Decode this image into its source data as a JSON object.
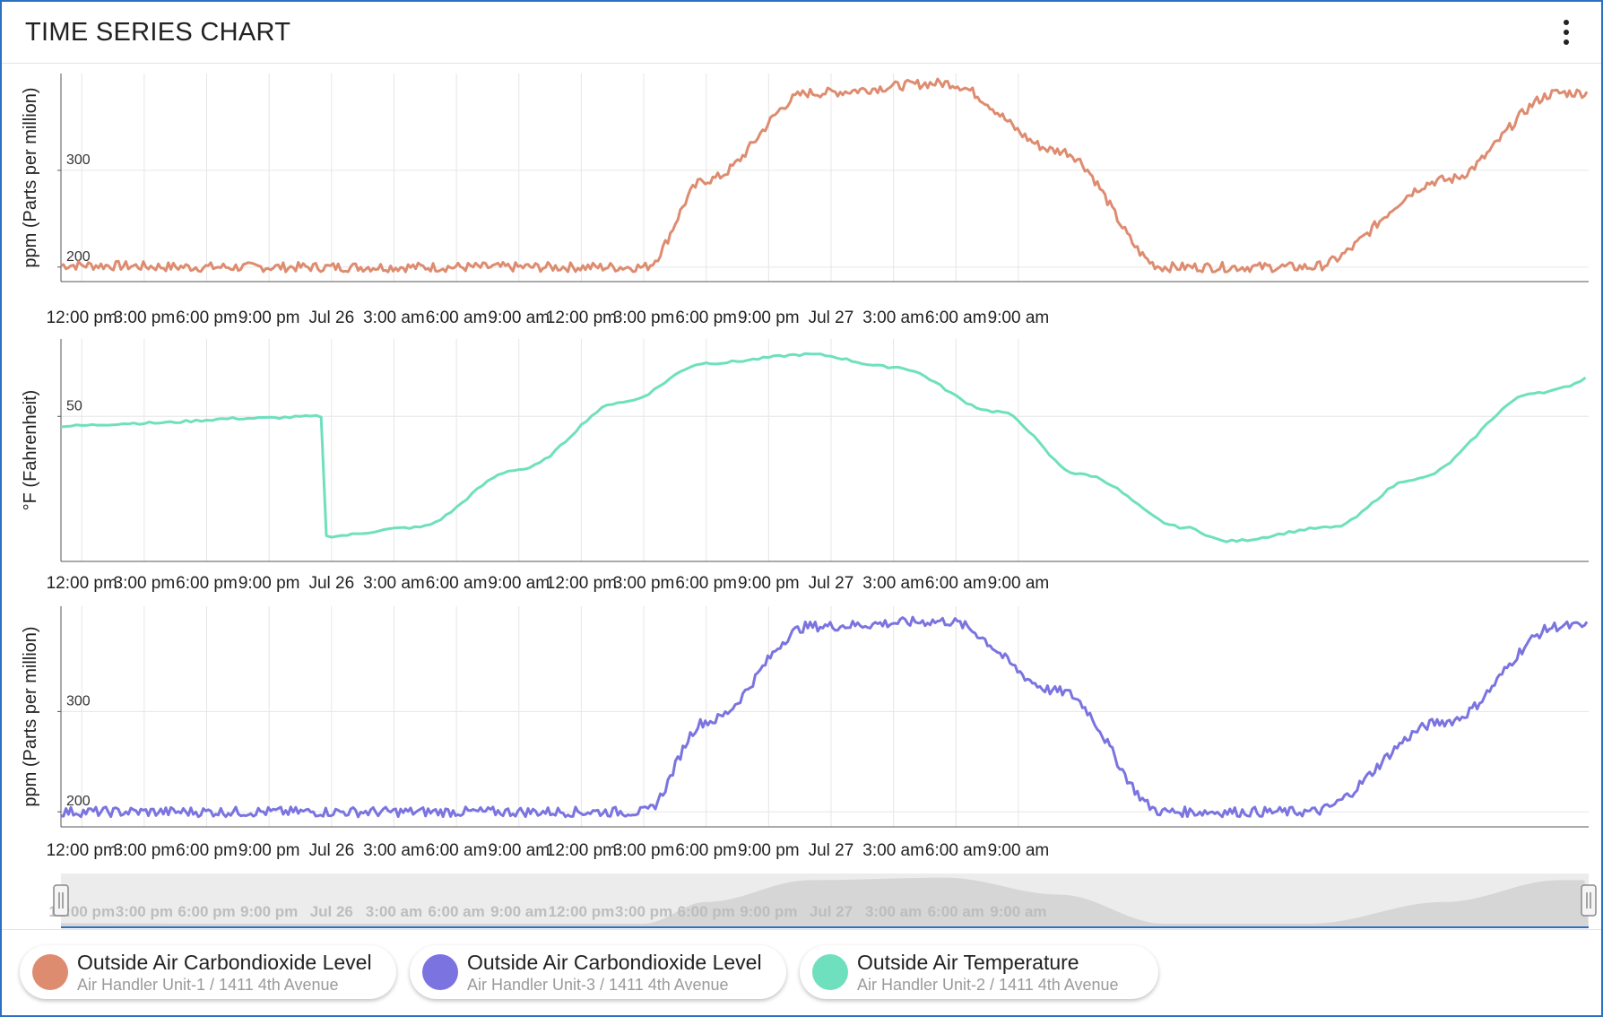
{
  "header": {
    "title": "TIME SERIES CHART",
    "menu_icon": "more-vertical-icon"
  },
  "colors": {
    "series1": "#de8c70",
    "series2": "#6ee0bd",
    "series3": "#7b74e0",
    "grid": "#e6e6e6",
    "axis": "#555555"
  },
  "x_ticks": [
    "12:00 pm",
    "3:00 pm",
    "6:00 pm",
    "9:00 pm",
    "Jul 26",
    "3:00 am",
    "6:00 am",
    "9:00 am",
    "12:00 pm",
    "3:00 pm",
    "6:00 pm",
    "9:00 pm",
    "Jul 27",
    "3:00 am",
    "6:00 am",
    "9:00 am"
  ],
  "navigator": {
    "ticks": [
      "12:00 pm",
      "3:00 pm",
      "6:00 pm",
      "9:00 pm",
      "Jul 26",
      "3:00 am",
      "6:00 am",
      "9:00 am",
      "12:00 pm",
      "3:00 pm",
      "6:00 pm",
      "9:00 pm",
      "Jul 27",
      "3:00 am",
      "6:00 am",
      "9:00 am"
    ]
  },
  "chart_data": [
    {
      "type": "line",
      "ylabel": "ppm (Parts per million)",
      "y_ticks": [
        "300",
        "200"
      ],
      "ylim": [
        185,
        400
      ],
      "series": [
        {
          "name": "Outside Air Carbondioxide Level",
          "subtitle": "Air Handler Unit-1 / 1411 4th Avenue",
          "color": "#de8c70"
        }
      ],
      "x_hours": [
        11,
        18,
        24,
        30,
        33.5,
        36,
        39,
        42,
        47,
        53.5,
        59,
        64,
        70.3,
        71,
        77.5,
        83
      ],
      "values": [
        202,
        200,
        200,
        200,
        200,
        200,
        200,
        290,
        380,
        390,
        320,
        200,
        200,
        200,
        290,
        380
      ]
    },
    {
      "type": "line",
      "ylabel": "°F (Fahrenheit)",
      "y_ticks": [
        "50"
      ],
      "ylim": [
        35,
        58
      ],
      "series": [
        {
          "name": "Outside Air Temperature",
          "subtitle": "Air Handler Unit-2 / 1411 4th Avenue",
          "color": "#6ee0bd"
        }
      ],
      "x_hours": [
        11,
        15,
        20,
        23.7,
        23.75,
        28,
        33,
        38,
        42,
        47,
        51,
        56,
        60,
        65,
        67,
        72,
        76,
        82,
        88
      ],
      "values": [
        49,
        49.3,
        49.8,
        50,
        37.6,
        38.5,
        44.5,
        51.5,
        55.5,
        56.4,
        55.1,
        50.5,
        44,
        38.5,
        37.1,
        38.5,
        43.5,
        52.5,
        57.3
      ]
    },
    {
      "type": "line",
      "ylabel": "ppm (Parts per million)",
      "y_ticks": [
        "300",
        "200"
      ],
      "ylim": [
        185,
        405
      ],
      "series": [
        {
          "name": "Outside Air Carbondioxide Level",
          "subtitle": "Air Handler Unit-3 / 1411 4th Avenue",
          "color": "#7b74e0"
        }
      ],
      "x_hours": [
        11,
        18,
        24,
        30,
        33.5,
        36,
        39,
        42,
        47,
        53.5,
        59,
        64,
        70.3,
        71,
        77.5,
        83
      ],
      "values": [
        200,
        200,
        200,
        200,
        200,
        200,
        200,
        290,
        385,
        390,
        320,
        200,
        200,
        200,
        290,
        385
      ]
    }
  ],
  "legend": [
    {
      "title": "Outside Air Carbondioxide Level",
      "subtitle": "Air Handler Unit-1 / 1411 4th Avenue",
      "color": "#de8c70"
    },
    {
      "title": "Outside Air Carbondioxide Level",
      "subtitle": "Air Handler Unit-3 / 1411 4th Avenue",
      "color": "#7b74e0"
    },
    {
      "title": "Outside Air Temperature",
      "subtitle": "Air Handler Unit-2 / 1411 4th Avenue",
      "color": "#6ee0bd"
    }
  ]
}
